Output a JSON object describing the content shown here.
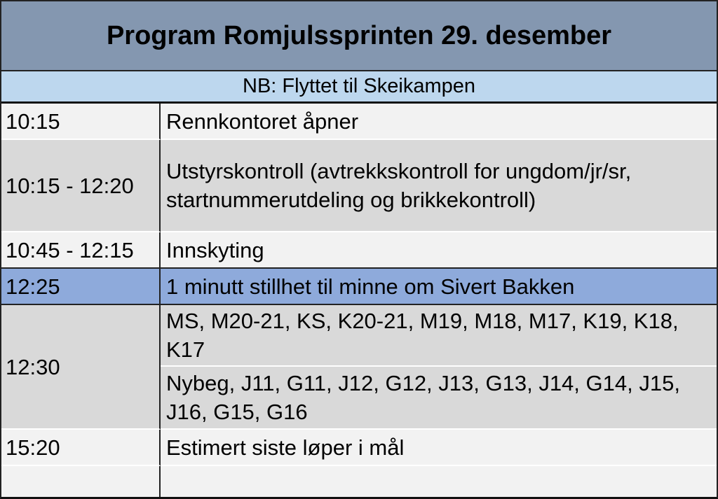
{
  "title": "Program Romjulssprinten 29. desember",
  "note": "NB: Flyttet til Skeikampen",
  "colors": {
    "header": "#8497b0",
    "note": "#bdd7ee",
    "highlight": "#8eaadb",
    "row_light": "#f2f2f2",
    "row_gray": "#d9d9d9"
  },
  "schedule": [
    {
      "time": "10:15",
      "items": [
        "Rennkontoret åpner"
      ]
    },
    {
      "time": "10:15 - 12:20",
      "items": [
        "Utstyrskontroll (avtrekkskontroll for ungdom/jr/sr, startnummerutdeling og brikkekontroll)"
      ]
    },
    {
      "time": "10:45 - 12:15",
      "items": [
        "Innskyting"
      ]
    },
    {
      "time": "12:25",
      "items": [
        "1 minutt stillhet til minne om Sivert Bakken"
      ]
    },
    {
      "time": "12:30",
      "items": [
        "MS, M20-21, KS, K20-21, M19, M18, M17, K19, K18, K17",
        "Nybeg, J11, G11, J12, G12, J13, G13, J14, G14, J15, J16, G15, G16"
      ]
    },
    {
      "time": "15:20",
      "items": [
        "Estimert siste løper i mål"
      ]
    },
    {
      "time": "",
      "items": [
        ""
      ]
    }
  ]
}
